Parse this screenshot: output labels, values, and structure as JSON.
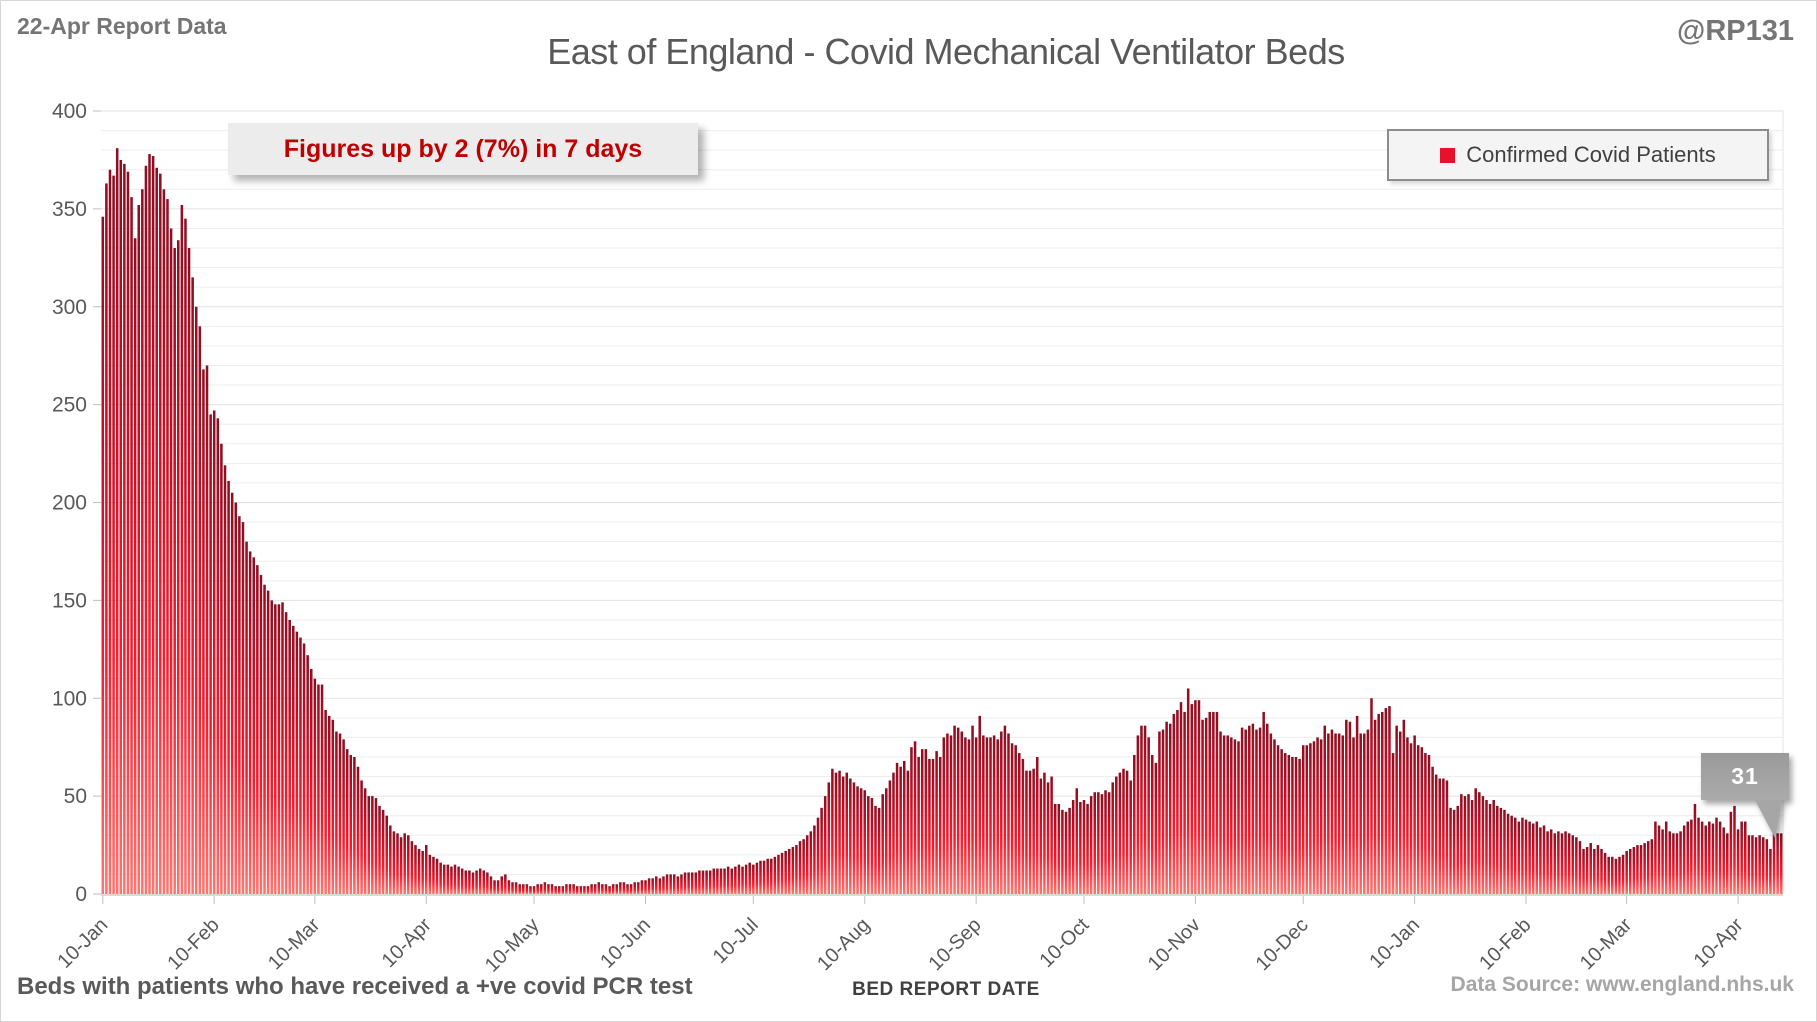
{
  "header": {
    "report_label": "22-Apr Report Data",
    "handle": "@RP131",
    "title": "East of England - Covid Mechanical Ventilator Beds"
  },
  "annotation": {
    "text": "Figures up by 2 (7%) in 7 days"
  },
  "legend": {
    "label": "Confirmed Covid Patients",
    "marker_color": "#e8112d"
  },
  "callout": {
    "value": "31"
  },
  "footer": {
    "caption": "Beds with patients who have received a +ve covid PCR test",
    "xlabel": "BED REPORT DATE",
    "source": "Data Source: www.england.nhs.uk"
  },
  "chart_data": {
    "type": "bar",
    "title": "East of England - Covid Mechanical Ventilator Beds",
    "xlabel": "BED REPORT DATE",
    "ylabel": "",
    "ylim": [
      0,
      400
    ],
    "y_tick_step": 50,
    "gridline_step": 10,
    "grid": "horizontal",
    "legend_position": "top-right",
    "series_name": "Confirmed Covid Patients",
    "bar_gradient": [
      "#8c0e21",
      "#c11026",
      "#f01f30",
      "#ff7571"
    ],
    "x_ticks": [
      {
        "day": 0,
        "label": "10-Jan"
      },
      {
        "day": 31,
        "label": "10-Feb"
      },
      {
        "day": 59,
        "label": "10-Mar"
      },
      {
        "day": 90,
        "label": "10-Apr"
      },
      {
        "day": 120,
        "label": "10-May"
      },
      {
        "day": 151,
        "label": "10-Jun"
      },
      {
        "day": 181,
        "label": "10-Jul"
      },
      {
        "day": 212,
        "label": "10-Aug"
      },
      {
        "day": 243,
        "label": "10-Sep"
      },
      {
        "day": 273,
        "label": "10-Oct"
      },
      {
        "day": 304,
        "label": "10-Nov"
      },
      {
        "day": 334,
        "label": "10-Dec"
      },
      {
        "day": 365,
        "label": "10-Jan"
      },
      {
        "day": 396,
        "label": "10-Feb"
      },
      {
        "day": 424,
        "label": "10-Mar"
      },
      {
        "day": 455,
        "label": "10-Apr"
      }
    ],
    "last_value": 31,
    "values": [
      346,
      363,
      370,
      367,
      381,
      375,
      373,
      369,
      356,
      335,
      352,
      360,
      372,
      378,
      377,
      371,
      368,
      360,
      355,
      340,
      330,
      334,
      352,
      345,
      330,
      315,
      300,
      290,
      268,
      270,
      245,
      247,
      243,
      230,
      219,
      211,
      205,
      200,
      193,
      190,
      180,
      175,
      172,
      168,
      163,
      158,
      155,
      150,
      148,
      148,
      149,
      144,
      140,
      137,
      134,
      131,
      128,
      122,
      115,
      110,
      107,
      107,
      94,
      91,
      89,
      83,
      82,
      79,
      74,
      71,
      70,
      65,
      58,
      54,
      50,
      50,
      49,
      45,
      43,
      40,
      35,
      32,
      31,
      29,
      31,
      30,
      27,
      25,
      23,
      22,
      25,
      20,
      19,
      18,
      16,
      15,
      15,
      14,
      15,
      14,
      13,
      12,
      12,
      11,
      12,
      13,
      12,
      11,
      9,
      7,
      7,
      9,
      10,
      7,
      6,
      6,
      5,
      5,
      5,
      4,
      4,
      5,
      5,
      6,
      5,
      5,
      4,
      4,
      4,
      5,
      5,
      5,
      4,
      4,
      4,
      4,
      5,
      5,
      6,
      5,
      5,
      4,
      5,
      5,
      6,
      6,
      5,
      5,
      6,
      6,
      7,
      7,
      8,
      8,
      9,
      8,
      9,
      10,
      10,
      10,
      9,
      10,
      11,
      11,
      11,
      11,
      12,
      12,
      12,
      12,
      13,
      13,
      13,
      13,
      14,
      13,
      14,
      15,
      14,
      15,
      16,
      15,
      16,
      17,
      17,
      18,
      18,
      19,
      20,
      21,
      22,
      23,
      24,
      25,
      27,
      28,
      30,
      32,
      35,
      39,
      44,
      50,
      57,
      64,
      62,
      63,
      60,
      62,
      59,
      57,
      55,
      54,
      53,
      50,
      49,
      45,
      44,
      51,
      54,
      58,
      62,
      67,
      65,
      68,
      63,
      75,
      78,
      70,
      74,
      74,
      69,
      69,
      73,
      70,
      80,
      82,
      81,
      86,
      85,
      83,
      80,
      79,
      86,
      80,
      91,
      81,
      80,
      80,
      81,
      79,
      83,
      86,
      82,
      77,
      76,
      72,
      69,
      63,
      63,
      64,
      70,
      59,
      62,
      57,
      60,
      46,
      46,
      43,
      42,
      44,
      48,
      54,
      47,
      48,
      46,
      50,
      52,
      52,
      51,
      53,
      52,
      57,
      60,
      62,
      64,
      63,
      58,
      71,
      81,
      86,
      86,
      80,
      71,
      67,
      83,
      84,
      88,
      87,
      92,
      94,
      98,
      93,
      105,
      97,
      99,
      99,
      89,
      90,
      93,
      93,
      93,
      83,
      81,
      81,
      80,
      79,
      78,
      85,
      84,
      86,
      87,
      84,
      85,
      93,
      87,
      82,
      79,
      76,
      74,
      72,
      71,
      70,
      70,
      69,
      76,
      76,
      77,
      78,
      80,
      79,
      86,
      82,
      84,
      82,
      82,
      81,
      89,
      88,
      80,
      91,
      82,
      82,
      84,
      100,
      89,
      92,
      93,
      95,
      96,
      72,
      86,
      83,
      89,
      80,
      77,
      81,
      76,
      75,
      72,
      71,
      65,
      61,
      59,
      59,
      58,
      44,
      43,
      45,
      51,
      50,
      51,
      48,
      54,
      52,
      50,
      48,
      46,
      48,
      45,
      44,
      43,
      41,
      40,
      39,
      37,
      39,
      38,
      37,
      36,
      37,
      34,
      35,
      32,
      33,
      31,
      32,
      31,
      32,
      31,
      30,
      29,
      27,
      23,
      24,
      26,
      23,
      25,
      23,
      21,
      19,
      19,
      18,
      19,
      20,
      22,
      23,
      24,
      25,
      25,
      26,
      27,
      28,
      37,
      35,
      33,
      37,
      32,
      31,
      31,
      32,
      35,
      37,
      38,
      46,
      39,
      37,
      35,
      37,
      36,
      39,
      37,
      34,
      31,
      42,
      45,
      33,
      37,
      37,
      30,
      30,
      29,
      30,
      29,
      28,
      23,
      33,
      31,
      31
    ]
  }
}
